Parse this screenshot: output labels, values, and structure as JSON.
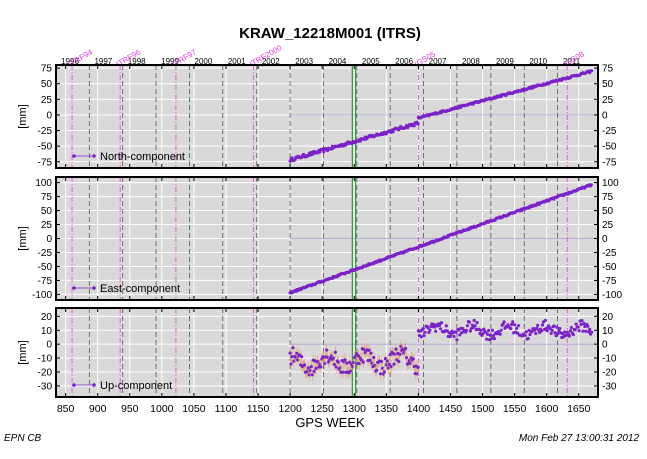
{
  "footer": {
    "left": "EPN CB",
    "right": "Mon Feb 27 13:00:31 2012"
  },
  "colors": {
    "plot_bg": "#d9d9d9",
    "data": "#7b22c8",
    "error": "#e0a070",
    "frame_change": "#e040e0",
    "equipment_change": "#555555",
    "discontinuity": "#2a9a3a"
  },
  "chart_data": {
    "type": "scatter",
    "title": "KRAW_12218M001 (ITRS)",
    "xlabel": "GPS WEEK",
    "xlim": [
      835,
      1680
    ],
    "x_ticks": [
      850,
      900,
      950,
      1000,
      1050,
      1100,
      1150,
      1200,
      1250,
      1300,
      1350,
      1400,
      1450,
      1500,
      1550,
      1600,
      1650
    ],
    "year_marks": [
      {
        "label": "1996",
        "week": 835
      },
      {
        "label": "1997",
        "week": 887
      },
      {
        "label": "1998",
        "week": 939
      },
      {
        "label": "1999",
        "week": 991
      },
      {
        "label": "2000",
        "week": 1043
      },
      {
        "label": "2001",
        "week": 1095
      },
      {
        "label": "2002",
        "week": 1148
      },
      {
        "label": "2003",
        "week": 1200
      },
      {
        "label": "2004",
        "week": 1252
      },
      {
        "label": "2005",
        "week": 1304
      },
      {
        "label": "2006",
        "week": 1356
      },
      {
        "label": "2007",
        "week": 1408
      },
      {
        "label": "2008",
        "week": 1460
      },
      {
        "label": "2009",
        "week": 1513
      },
      {
        "label": "2010",
        "week": 1565
      },
      {
        "label": "2011",
        "week": 1617
      }
    ],
    "frame_marks": [
      {
        "label": "ITRF94",
        "week": 860
      },
      {
        "label": "ITRF96",
        "week": 935
      },
      {
        "label": "ITRF97",
        "week": 1022
      },
      {
        "label": "ITRF2000",
        "week": 1143
      },
      {
        "label": "IGS05",
        "week": 1400
      },
      {
        "label": "IGS08",
        "week": 1632
      }
    ],
    "discontinuity_weeks": [
      1297,
      1302
    ],
    "panels": [
      {
        "name": "North-component",
        "ylabel": "[mm]",
        "ylim": [
          -85,
          80
        ],
        "y_ticks": [
          -75,
          -50,
          -25,
          0,
          25,
          50,
          75
        ],
        "segments": [
          {
            "from": 1200,
            "to": 1400,
            "start": -72,
            "end": -13,
            "noise": 2.5
          },
          {
            "from": 1400,
            "to": 1670,
            "start": -5,
            "end": 70,
            "noise": 1.5
          }
        ]
      },
      {
        "name": "East-component",
        "ylabel": "[mm]",
        "ylim": [
          -110,
          110
        ],
        "y_ticks": [
          -100,
          -75,
          -50,
          -25,
          0,
          25,
          50,
          75,
          100
        ],
        "segments": [
          {
            "from": 1200,
            "to": 1670,
            "start": -97,
            "end": 96,
            "noise": 1.5
          }
        ]
      },
      {
        "name": "Up-component",
        "ylabel": "[mm]",
        "ylim": [
          -38,
          26
        ],
        "y_ticks": [
          -30,
          -20,
          -10,
          0,
          10,
          20
        ],
        "segments": [
          {
            "from": 1200,
            "to": 1400,
            "start": -13,
            "end": -11,
            "noise": 6,
            "errorbars": true
          },
          {
            "from": 1400,
            "to": 1670,
            "start": 10,
            "end": 10,
            "noise": 4,
            "errorbars": false
          }
        ]
      }
    ]
  }
}
